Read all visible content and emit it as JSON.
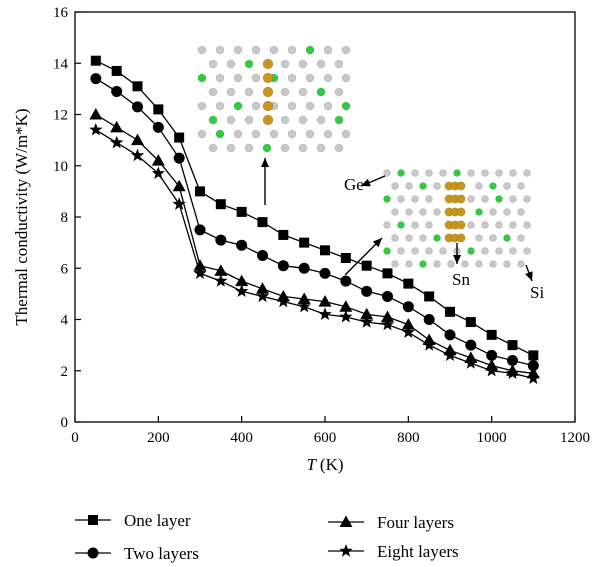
{
  "chart_data": {
    "type": "line",
    "xlabel_var": "T",
    "xlabel_unit": "(K)",
    "ylabel": "Thermal conductivity (W/m*K)",
    "xlim": [
      0,
      1200
    ],
    "ylim": [
      0,
      16
    ],
    "xticks": [
      0,
      200,
      400,
      600,
      800,
      1000,
      1200
    ],
    "yticks": [
      0,
      2,
      4,
      6,
      8,
      10,
      12,
      14,
      16
    ],
    "grid": false,
    "legend_position": "bottom",
    "x": [
      50,
      100,
      150,
      200,
      250,
      300,
      350,
      400,
      450,
      500,
      550,
      600,
      650,
      700,
      750,
      800,
      850,
      900,
      950,
      1000,
      1050,
      1100
    ],
    "series": [
      {
        "name": "One layer",
        "marker": "square",
        "values": [
          14.1,
          13.7,
          13.1,
          12.2,
          11.1,
          9.0,
          8.5,
          8.2,
          7.8,
          7.3,
          7.0,
          6.7,
          6.4,
          6.1,
          5.8,
          5.4,
          4.9,
          4.3,
          3.9,
          3.4,
          3.0,
          2.6
        ]
      },
      {
        "name": "Two layers",
        "marker": "circle",
        "values": [
          13.4,
          12.9,
          12.3,
          11.5,
          10.3,
          7.5,
          7.1,
          6.9,
          6.5,
          6.1,
          6.0,
          5.8,
          5.5,
          5.1,
          4.9,
          4.5,
          4.0,
          3.4,
          3.0,
          2.6,
          2.4,
          2.2
        ]
      },
      {
        "name": "Four layers",
        "marker": "triangle",
        "values": [
          12.0,
          11.5,
          11.0,
          10.2,
          9.2,
          6.1,
          5.9,
          5.5,
          5.2,
          4.9,
          4.8,
          4.7,
          4.5,
          4.2,
          4.1,
          3.8,
          3.2,
          2.8,
          2.5,
          2.2,
          2.0,
          1.9
        ]
      },
      {
        "name": "Eight layers",
        "marker": "star",
        "values": [
          11.4,
          10.9,
          10.4,
          9.7,
          8.5,
          5.8,
          5.5,
          5.1,
          4.9,
          4.7,
          4.5,
          4.2,
          4.1,
          3.9,
          3.8,
          3.5,
          3.0,
          2.6,
          2.3,
          2.0,
          1.9,
          1.7
        ]
      }
    ],
    "annotations": [
      "Ge",
      "Sn",
      "Si"
    ],
    "inset_colors": {
      "si": "#c8c8c8",
      "ge": "#2ecc40",
      "sn": "#c8961e"
    }
  }
}
